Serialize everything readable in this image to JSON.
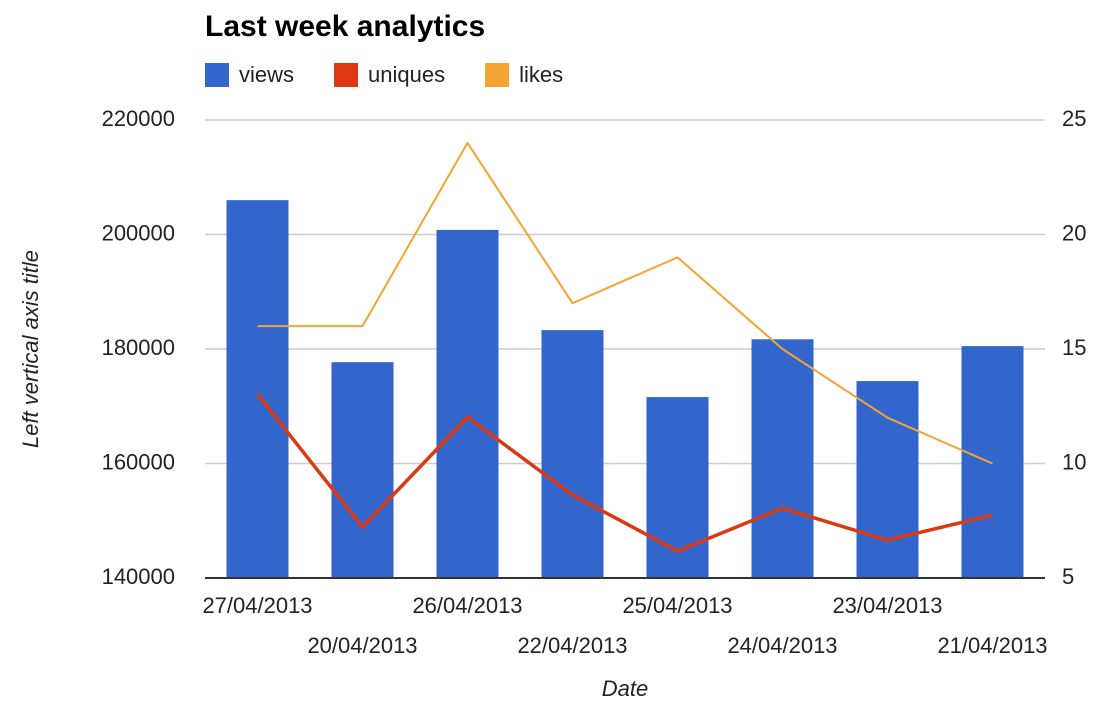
{
  "chart_data": {
    "type": "combo",
    "title": "Last week analytics",
    "x_label": "Date",
    "y_label": "Left vertical axis title",
    "categories": [
      "27/04/2013",
      "20/04/2013",
      "26/04/2013",
      "22/04/2013",
      "25/04/2013",
      "24/04/2013",
      "23/04/2013",
      "21/04/2013"
    ],
    "series": [
      {
        "name": "views",
        "color": "#3366cc",
        "kind": "bar",
        "axis": "y",
        "values": [
          206000,
          177700,
          200800,
          183300,
          171600,
          181700,
          174400,
          180500
        ]
      },
      {
        "name": "uniques",
        "color": "#dc3912",
        "kind": "line",
        "axis": "y",
        "values": [
          172100,
          148900,
          168100,
          154500,
          144700,
          152200,
          146600,
          151000
        ]
      },
      {
        "name": "likes",
        "color": "#f4a433",
        "kind": "line",
        "axis": "y2",
        "values": [
          16,
          16,
          24,
          17,
          19,
          15,
          12,
          10
        ]
      }
    ],
    "ylim": [
      140000,
      220000
    ],
    "yticks": [
      140000,
      160000,
      180000,
      200000,
      220000
    ],
    "y2lim": [
      5,
      25
    ],
    "y2ticks": [
      5,
      10,
      15,
      20,
      25
    ],
    "grid": true,
    "legend": "top"
  }
}
